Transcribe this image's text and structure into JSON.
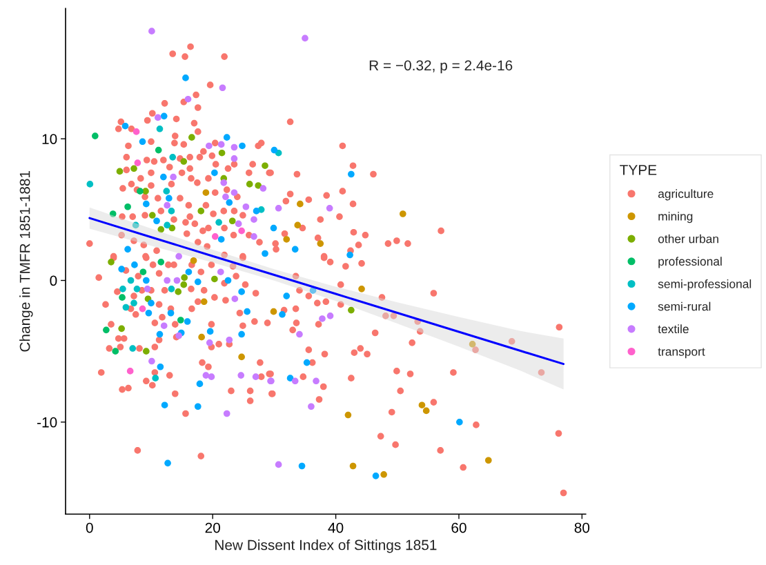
{
  "chart_data": {
    "type": "scatter",
    "xlabel": "New Dissent Index of Sittings 1851",
    "ylabel": "Change in TMFR 1851-1881",
    "legend_title": "TYPE",
    "legend": "right",
    "grid": false,
    "marker": "circle",
    "annotations": [
      "R = −0.32, p = 2.4e-16"
    ],
    "xlim": [
      -3.9,
      80.6
    ],
    "ylim": [
      -16.5,
      19.2
    ],
    "xticks": [
      0,
      20,
      40,
      60,
      80
    ],
    "yticks": [
      -10,
      0,
      10
    ],
    "series": [
      {
        "name": "agriculture",
        "color": "#f8766d",
        "x": [
          16.4,
          13.5,
          15.5,
          21.9,
          19.6,
          17.3,
          15.3,
          12.2,
          17.6,
          10.2,
          9.4,
          14.1,
          5.1,
          4.7,
          6.8,
          17.0,
          17.6,
          13.9,
          10.0,
          6.3,
          13.8,
          15.3,
          20.4,
          18.5,
          19.9,
          27.4,
          27.9,
          6.0,
          9.3,
          10.5,
          12.0,
          14.7,
          16.3,
          17.9,
          20.5,
          26.5,
          6.0,
          10.0,
          13.0,
          16.3,
          22.5,
          23.5,
          25.9,
          29.2,
          8.3,
          15.0,
          16.5,
          17.5,
          19.3,
          6.8,
          10.0,
          13.3,
          5.4,
          7.7,
          11.1,
          14.7,
          20.4,
          22.3,
          24.0,
          9.0,
          16.1,
          18.9,
          21.8,
          23.5,
          24.9,
          9.0,
          11.6,
          7.0,
          16.3,
          20.1,
          5.3,
          15.6,
          17.1,
          19.3,
          21.9,
          13.7,
          18.4,
          23.4,
          25.9,
          27.6,
          15.8,
          5.2,
          7.2,
          8.8,
          0.0,
          3.9,
          9.1,
          10.9,
          17.6,
          21.9,
          24.9,
          19.1,
          1.5,
          3.9,
          9.2,
          10.3,
          12.8,
          13.7,
          5.9,
          7.9,
          11.3,
          16.6,
          18.1,
          19.8,
          23.8,
          23.3,
          24.9,
          4.5,
          7.2,
          8.5,
          10.0,
          12.2,
          16.5,
          18.6,
          21.9,
          25.3,
          27.0,
          2.6,
          6.7,
          7.5,
          11.3,
          13.2,
          16.6,
          17.6,
          20.3,
          22.1,
          24.4,
          26.8,
          28.9,
          10.6,
          11.8,
          13.9,
          19.8,
          24.9,
          3.5,
          4.7,
          5.6,
          11.3,
          3.2,
          5.0,
          8.1,
          10.6,
          14.1,
          21.0,
          22.7,
          19.8,
          18.3,
          19.3,
          27.7,
          29.2,
          27.9,
          1.9,
          10.6,
          13.0,
          9.2,
          10.2,
          5.3,
          6.3,
          13.9,
          23.0,
          26.1,
          26.1,
          29.6,
          15.6,
          7.8,
          18.1,
          32.6,
          41.1,
          42.8,
          46.1,
          33.7,
          29.4,
          41.1,
          32.6,
          38.5,
          35.6,
          31.9,
          42.8,
          40.6,
          37.5,
          34.6,
          31.7,
          30.2,
          30.3,
          37.1,
          42.9,
          44.8,
          43.7,
          42.4,
          48.5,
          49.9,
          51.7,
          57.1,
          38.1,
          38.1,
          39.1,
          41.6,
          44.2,
          33.5,
          34.1,
          35.6,
          37.0,
          38.4,
          40.8,
          40.8,
          47.5,
          55.9,
          33.5,
          31.6,
          48.1,
          49.4,
          53.3,
          53.7,
          68.6,
          62.7,
          73.4,
          76.3,
          33.6,
          33.0,
          37.2,
          46.4,
          52.4,
          35.6,
          38.2,
          43.0,
          44.0,
          45.1,
          36.2,
          29.4,
          34.7,
          38.0,
          42.5,
          49.9,
          52.1,
          59.1,
          29.7,
          37.3,
          50.5,
          55.9,
          49.1,
          47.3,
          49.7,
          57.0,
          62.8,
          60.7,
          76.2,
          77.0
        ],
        "values": [
          16.5,
          16.0,
          15.8,
          15.8,
          13.8,
          13.1,
          12.6,
          12.5,
          12.2,
          11.8,
          11.3,
          11.4,
          11.2,
          10.7,
          10.7,
          11.1,
          10.5,
          10.2,
          9.8,
          9.5,
          9.7,
          9.6,
          9.7,
          9.1,
          8.8,
          9.5,
          9.7,
          8.7,
          8.5,
          8.4,
          8.5,
          8.6,
          8.7,
          8.7,
          8.2,
          8.2,
          7.8,
          7.6,
          8.0,
          7.9,
          7.9,
          8.2,
          7.6,
          7.6,
          7.2,
          7.6,
          7.2,
          6.9,
          7.2,
          6.8,
          6.7,
          6.8,
          6.5,
          6.4,
          5.8,
          5.8,
          6.2,
          6.4,
          5.9,
          5.9,
          5.3,
          5.3,
          4.9,
          4.9,
          4.6,
          4.6,
          4.9,
          4.5,
          4.5,
          4.7,
          4.5,
          4.1,
          4.0,
          3.7,
          3.7,
          4.3,
          3.5,
          3.2,
          3.2,
          2.7,
          3.3,
          3.2,
          2.8,
          2.5,
          2.6,
          1.7,
          1.7,
          2.1,
          2.7,
          1.8,
          1.7,
          2.4,
          0.2,
          1.6,
          1.6,
          1.1,
          1.1,
          1.1,
          0.7,
          0.3,
          0.5,
          1.1,
          0.6,
          1.1,
          0.3,
          1.0,
          1.6,
          -0.8,
          -1.1,
          -0.7,
          -0.7,
          -0.7,
          -0.6,
          -0.7,
          -0.2,
          -0.3,
          -0.9,
          -1.7,
          -2.0,
          -2.4,
          -1.7,
          -2.0,
          -2.0,
          -1.5,
          -1.2,
          -1.4,
          -2.3,
          -2.9,
          -3.0,
          -3.0,
          -2.6,
          -3.1,
          -3.1,
          -3.2,
          -3.1,
          -4.1,
          -4.1,
          -4.2,
          -4.8,
          -4.7,
          -4.8,
          -4.7,
          -4.0,
          -4.5,
          -4.5,
          -4.7,
          -5.8,
          -6.1,
          -5.8,
          -6.6,
          -6.8,
          -6.5,
          -6.5,
          -6.7,
          -7.1,
          -7.4,
          -7.7,
          -7.6,
          -8.0,
          -7.8,
          -7.8,
          -8.5,
          -8.0,
          -9.4,
          -12.0,
          -12.4,
          11.2,
          9.5,
          8.1,
          7.5,
          7.5,
          7.6,
          6.3,
          6.1,
          6.0,
          5.7,
          5.6,
          5.4,
          4.5,
          4.3,
          3.7,
          3.3,
          2.6,
          2.2,
          3.0,
          3.4,
          3.2,
          2.5,
          2.1,
          2.6,
          2.8,
          2.6,
          3.5,
          1.7,
          1.6,
          1.3,
          1.0,
          1.2,
          0.3,
          -0.7,
          -1.1,
          -1.6,
          -1.5,
          -0.3,
          -1.7,
          -1.2,
          -0.9,
          -2.0,
          -2.1,
          -2.5,
          -2.5,
          -2.9,
          -3.6,
          -4.3,
          -4.9,
          -6.5,
          -3.3,
          -3.0,
          -3.5,
          -3.1,
          -3.7,
          -4.4,
          -4.9,
          -5.2,
          -5.1,
          -4.8,
          -5.2,
          -5.8,
          -6.6,
          -6.8,
          -7.5,
          -6.9,
          -6.4,
          -6.6,
          -6.5,
          -8.0,
          -8.4,
          -7.8,
          -8.6,
          -9.3,
          -11.0,
          -11.6,
          -12.0,
          -10.2,
          -13.2,
          -10.8,
          -15.0
        ]
      },
      {
        "name": "mining",
        "color": "#cd9600",
        "x": [
          34.2,
          33.8,
          32.0,
          37.5,
          50.9,
          29.9,
          44.2,
          42.0,
          42.8,
          47.8,
          54.0,
          54.7,
          62.2,
          64.8,
          18.2,
          24.7,
          16.9,
          18.6,
          18.9
        ],
        "values": [
          5.4,
          3.9,
          2.9,
          2.6,
          4.7,
          -2.2,
          -0.6,
          -9.5,
          -13.1,
          -13.7,
          -8.8,
          -9.2,
          -4.5,
          -12.7,
          -4.0,
          -5.4,
          1.4,
          -1.5,
          6.2
        ]
      },
      {
        "name": "other urban",
        "color": "#7cae00",
        "x": [
          16.6,
          21.5,
          15.3,
          4.9,
          7.2,
          28.5,
          21.8,
          26.0,
          27.4,
          9.1,
          18.1,
          23.2,
          10.2,
          11.6,
          13.4,
          3.5,
          15.4,
          20.3,
          15.3,
          14.4,
          9.5,
          5.2,
          9.2,
          42.5
        ],
        "values": [
          10.1,
          9.0,
          8.4,
          7.7,
          7.9,
          8.1,
          7.2,
          6.8,
          6.7,
          6.3,
          4.9,
          4.2,
          4.6,
          3.6,
          3.7,
          1.3,
          0.2,
          0.1,
          -0.3,
          -0.8,
          -1.3,
          -3.4,
          -5.0,
          -2.1
        ]
      },
      {
        "name": "professional",
        "color": "#00be67",
        "x": [
          0.9,
          11.2,
          6.2,
          3.8,
          8.2,
          8.7,
          11.6,
          5.3,
          14.8,
          2.7,
          4.2
        ],
        "values": [
          10.2,
          9.2,
          5.2,
          4.7,
          6.3,
          0.6,
          1.3,
          -1.2,
          -2.8,
          -3.5,
          -5.0
        ]
      },
      {
        "name": "semi-professional",
        "color": "#00bfc4",
        "x": [
          0.06,
          11.4,
          13.5,
          12.5,
          13.3,
          12.6,
          21.0,
          27.9,
          7.5,
          30.7,
          6.7,
          5.4,
          7.7,
          13.3,
          7.2,
          5.9,
          7.0,
          10.7
        ],
        "values": [
          6.8,
          10.7,
          8.7,
          6.3,
          4.9,
          3.9,
          4.1,
          5.0,
          3.9,
          9.0,
          0.0,
          -0.6,
          -0.6,
          -0.6,
          -1.6,
          -1.9,
          -4.8,
          -6.9
        ]
      },
      {
        "name": "semi-rural",
        "color": "#00a9ff",
        "x": [
          15.6,
          12.1,
          5.8,
          8.6,
          22.3,
          24.8,
          20.3,
          12.0,
          12.9,
          9.2,
          22.7,
          27.1,
          10.9,
          21.4,
          28.5,
          6.2,
          7.3,
          5.2,
          9.2,
          17.6,
          22.5,
          16.1,
          10.0,
          9.6,
          13.2,
          15.9,
          14.9,
          24.7,
          25.6,
          19.6,
          24.7,
          11.4,
          11.5,
          17.9,
          12.2,
          17.6,
          12.7,
          30.0,
          42.5,
          29.9,
          33.4,
          42.3,
          32.0,
          36.3,
          31.3,
          35.3,
          32.6,
          34.5,
          46.5,
          60.1
        ],
        "values": [
          14.3,
          11.6,
          10.9,
          9.8,
          10.1,
          9.5,
          7.6,
          7.3,
          5.8,
          5.4,
          5.5,
          4.9,
          4.2,
          2.9,
          1.9,
          2.2,
          1.1,
          0.8,
          0.0,
          -0.1,
          0.0,
          0.6,
          -1.6,
          -2.3,
          -2.3,
          -2.9,
          -3.7,
          -0.8,
          -2.2,
          -3.6,
          -3.8,
          -3.8,
          -6.1,
          -7.3,
          -8.8,
          -8.9,
          -12.9,
          9.2,
          7.5,
          3.7,
          2.2,
          1.8,
          -1.1,
          -0.7,
          -2.4,
          -5.8,
          -6.9,
          -13.1,
          -13.8,
          -10.0
        ]
      },
      {
        "name": "textile",
        "color": "#c77cff",
        "x": [
          10.1,
          35.0,
          21.6,
          16.0,
          11.1,
          19.4,
          21.4,
          23.5,
          23.5,
          13.6,
          21.8,
          28.2,
          23.5,
          22.1,
          12.6,
          25.4,
          26.7,
          24.2,
          26.7,
          14.5,
          30.7,
          39.0,
          12.6,
          14.2,
          9.4,
          12.1,
          14.5,
          23.6,
          21.3,
          19.5,
          22.7,
          10.1,
          18.9,
          19.8,
          24.6,
          27.0,
          29.4,
          22.3,
          37.8,
          39.1,
          34.1,
          29.5,
          33.4,
          36.8,
          36.0,
          30.7
        ],
        "values": [
          17.6,
          17.1,
          13.6,
          12.8,
          11.5,
          9.5,
          9.6,
          9.4,
          8.6,
          7.3,
          6.9,
          6.5,
          6.2,
          5.9,
          5.3,
          5.2,
          4.3,
          4.0,
          3.1,
          1.7,
          5.1,
          5.1,
          0.0,
          0.0,
          -0.6,
          -3.2,
          -3.9,
          -1.3,
          0.6,
          -4.4,
          -4.2,
          -5.7,
          -6.7,
          -6.8,
          -6.7,
          -6.8,
          -7.1,
          -9.4,
          -2.7,
          -2.5,
          -3.8,
          -7.1,
          -7.1,
          -7.1,
          -8.9,
          -13.0
        ]
      },
      {
        "name": "transport",
        "color": "#ff61cc",
        "x": [
          7.6,
          7.8,
          24.7,
          20.4,
          8.6,
          6.6
        ],
        "values": [
          10.5,
          8.3,
          3.5,
          3.1,
          -2.0,
          -6.4
        ]
      },
      {
        "type": "line",
        "marker": "none",
        "color": "#0000ff",
        "x": [
          0,
          10,
          20,
          30,
          40,
          50,
          60,
          70,
          77.0
        ],
        "values": [
          4.4,
          3.06,
          1.72,
          0.39,
          -0.95,
          -2.29,
          -3.63,
          -4.97,
          -5.9
        ],
        "lower": [
          3.65,
          2.45,
          1.27,
          -0.01,
          -1.45,
          -3.04,
          -4.68,
          -6.37,
          -7.7
        ],
        "upper": [
          5.15,
          3.67,
          2.17,
          0.79,
          -0.45,
          -1.54,
          -2.58,
          -3.57,
          -4.1
        ]
      }
    ]
  }
}
